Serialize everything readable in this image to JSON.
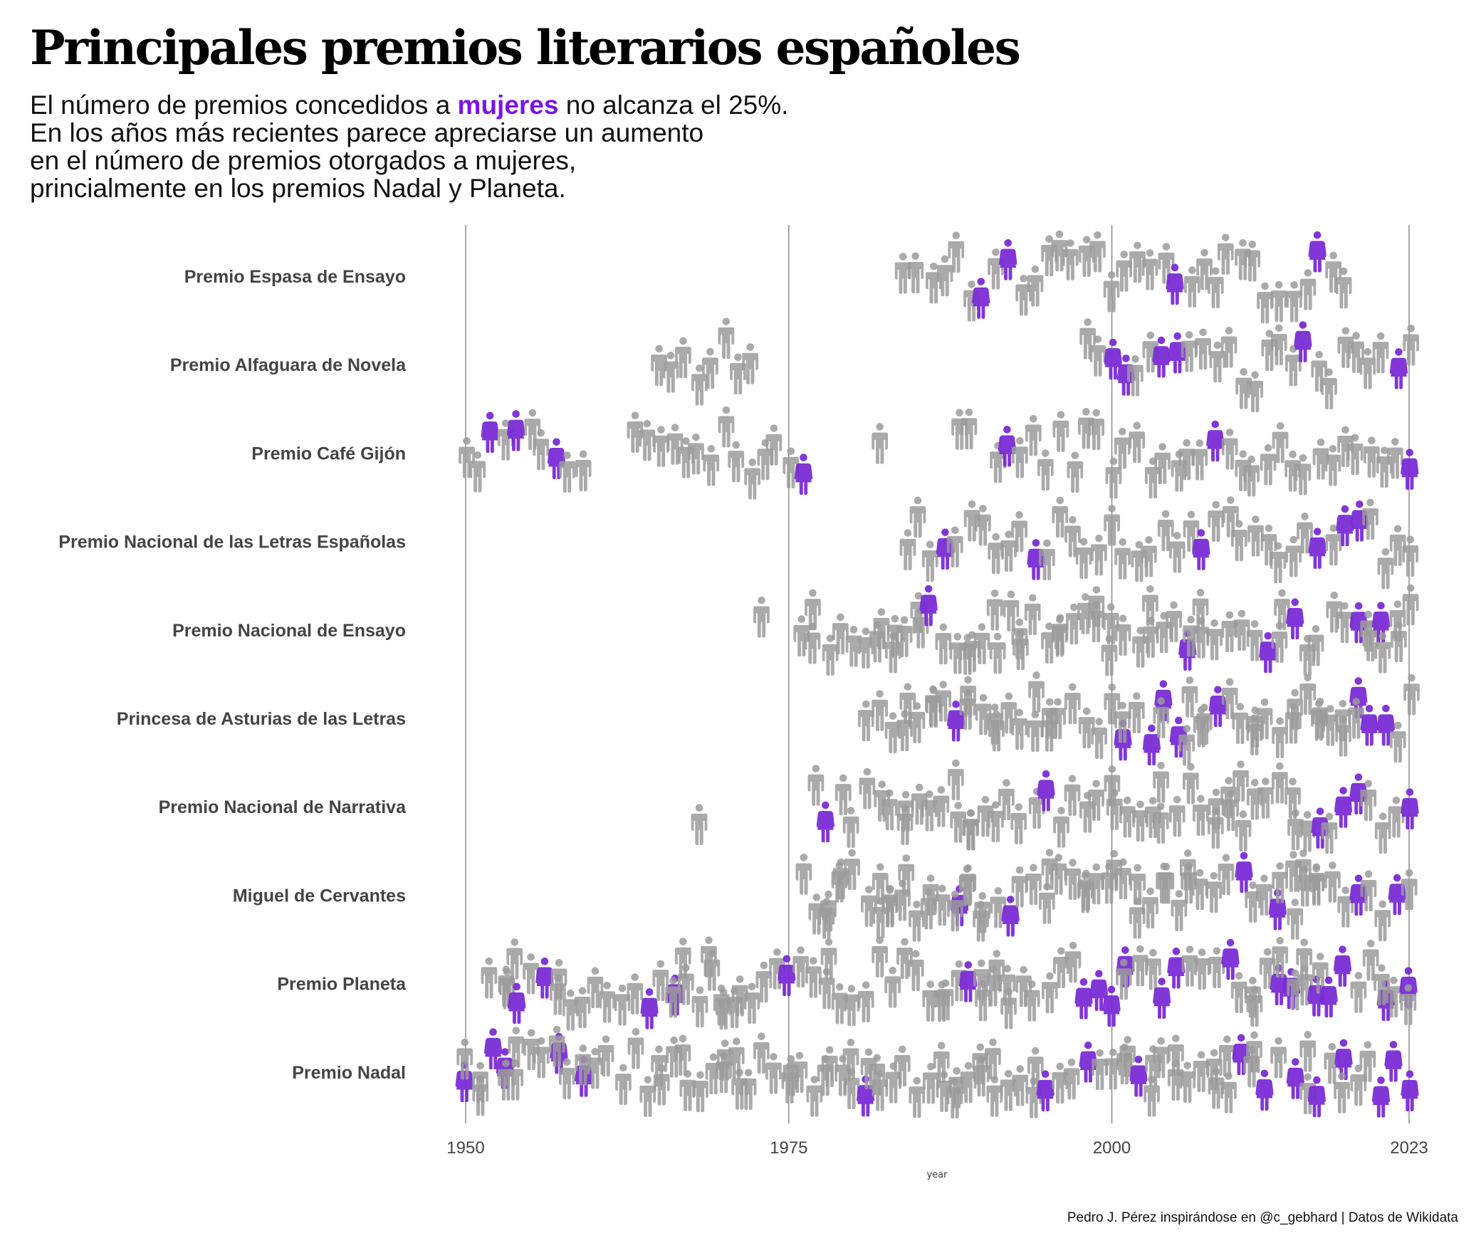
{
  "title": "Principales premios literarios españoles",
  "subtitle": {
    "line1_pre": "El número de premios concedidos a ",
    "line1_highlight": "mujeres",
    "line1_post": " no alcanza el 25%.",
    "line2": "En los años más recientes parece apreciarse un aumento",
    "line3": "en el número de premios otorgados a mujeres,",
    "line4": "princialmente en los premios Nadal y Planeta."
  },
  "caption": "Pedro J. Pérez inspirándose en @c_gebhard | Datos de Wikidata",
  "colors": {
    "woman": "#7a2bd6",
    "man": "#9b9b9b",
    "highlight": "#7a13e8",
    "axis_text": "#444444",
    "gridline": "#8c8c8c"
  },
  "icons": {
    "man": "man-icon",
    "woman": "woman-icon"
  },
  "chart_data": {
    "type": "scatter",
    "description_of_marks": "beeswarm of pictogram icons, one per award winner",
    "xlabel": "year",
    "xlim": [
      1950,
      2023
    ],
    "xticks": [
      1950,
      1975,
      2000,
      2023
    ],
    "grid": "vertical lines at x ticks",
    "categories": [
      "Premio Espasa de Ensayo",
      "Premio Alfaguara de Novela",
      "Premio Café Gijón",
      "Premio Nacional de las Letras Españolas",
      "Premio Nacional de Ensayo",
      "Princesa de Asturias de las Letras",
      "Premio Nacional de Narrativa",
      "Miguel de Cervantes",
      "Premio Planeta",
      "Premio Nadal"
    ],
    "awards": [
      {
        "name": "Premio Espasa de Ensayo",
        "start": 1984,
        "end": 2018,
        "gaps": [],
        "women": [
          1990,
          1992,
          2005,
          2016
        ]
      },
      {
        "name": "Premio Alfaguara de Novela",
        "start": 1965,
        "end": 2023,
        "gaps": [
          1973,
          1974,
          1975,
          1976,
          1977,
          1978,
          1979,
          1980,
          1981,
          1982,
          1983,
          1984,
          1985,
          1986,
          1987,
          1988,
          1989,
          1990,
          1991,
          1992,
          1993,
          1994,
          1995,
          1996,
          1997
        ],
        "women": [
          2000,
          2001,
          2004,
          2005,
          2015,
          2022
        ]
      },
      {
        "name": "Premio Café Gijón",
        "start": 1950,
        "end": 2023,
        "gaps": [
          1960,
          1961,
          1962,
          1977,
          1978,
          1979,
          1980,
          1981,
          1983,
          1984,
          1985,
          1986,
          1987,
          1990
        ],
        "women": [
          1952,
          1954,
          1957,
          1976,
          1992,
          2008,
          2023
        ]
      },
      {
        "name": "Premio Nacional de las Letras Españolas",
        "start": 1984,
        "end": 2023,
        "gaps": [],
        "women": [
          1987,
          1994,
          2007,
          2016,
          2018,
          2019
        ]
      },
      {
        "name": "Premio Nacional de Ensayo",
        "start": 1973,
        "end": 2023,
        "gaps": [
          1974,
          1975
        ],
        "women": [
          1986,
          2006,
          2012,
          2014,
          2019,
          2021
        ]
      },
      {
        "name": "Princesa de Asturias de las Letras",
        "start": 1981,
        "end": 2023,
        "gaps": [],
        "women": [
          1988,
          2001,
          2003,
          2004,
          2005,
          2008,
          2019,
          2020,
          2021
        ]
      },
      {
        "name": "Premio Nacional de Narrativa",
        "start": 1968,
        "end": 2023,
        "gaps": [
          1969,
          1970,
          1971,
          1972,
          1973,
          1974,
          1975,
          1976
        ],
        "women": [
          1978,
          1995,
          2016,
          2018,
          2019,
          2023
        ]
      },
      {
        "name": "Miguel de Cervantes",
        "start": 1976,
        "end": 2023,
        "gaps": [],
        "women": [
          1988,
          1992,
          2010,
          2013,
          2019,
          2022
        ]
      },
      {
        "name": "Premio Planeta",
        "start": 1952,
        "end": 2023,
        "gaps": [],
        "women": [
          1954,
          1956,
          1964,
          1966,
          1975,
          1989,
          1998,
          1999,
          2000,
          2001,
          2004,
          2005,
          2009,
          2013,
          2014,
          2016,
          2017,
          2018,
          2021,
          2023
        ]
      },
      {
        "name": "Premio Nadal",
        "start": 1950,
        "end": 2023,
        "gaps": [],
        "women": [
          1950,
          1952,
          1953,
          1957,
          1959,
          1981,
          1995,
          1998,
          2002,
          2010,
          2012,
          2014,
          2016,
          2018,
          2021,
          2022,
          2023
        ]
      }
    ]
  }
}
